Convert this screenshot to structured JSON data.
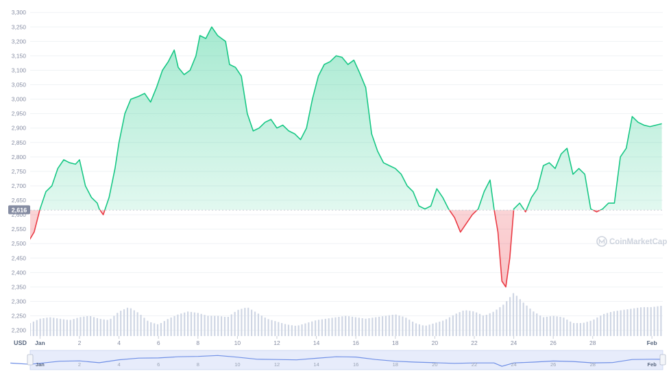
{
  "chart_data": {
    "type": "line",
    "currency_label": "USD",
    "watermark": "CoinMarketCap",
    "reference_value": 2616,
    "reference_label": "2,616",
    "ylim": [
      2180,
      3310
    ],
    "y_ticks": [
      {
        "value": 2200,
        "label": "2,200"
      },
      {
        "value": 2250,
        "label": "2,250"
      },
      {
        "value": 2300,
        "label": "2,300"
      },
      {
        "value": 2350,
        "label": "2,350"
      },
      {
        "value": 2400,
        "label": "2,400"
      },
      {
        "value": 2450,
        "label": "2,450"
      },
      {
        "value": 2500,
        "label": "2,500"
      },
      {
        "value": 2550,
        "label": "2,550"
      },
      {
        "value": 2600,
        "label": "2,600"
      },
      {
        "value": 2650,
        "label": "2,650"
      },
      {
        "value": 2700,
        "label": "2,700"
      },
      {
        "value": 2750,
        "label": "2,750"
      },
      {
        "value": 2800,
        "label": "2,800"
      },
      {
        "value": 2850,
        "label": "2,850"
      },
      {
        "value": 2900,
        "label": "2,900"
      },
      {
        "value": 2950,
        "label": "2,950"
      },
      {
        "value": 3000,
        "label": "3,000"
      },
      {
        "value": 3050,
        "label": "3,050"
      },
      {
        "value": 3100,
        "label": "3,100"
      },
      {
        "value": 3150,
        "label": "3,150"
      },
      {
        "value": 3200,
        "label": "3,200"
      },
      {
        "value": 3250,
        "label": "3,250"
      },
      {
        "value": 3300,
        "label": "3,300"
      }
    ],
    "xlim": [
      -0.5,
      31.55
    ],
    "x_ticks": [
      {
        "value": 0,
        "label": "Jan",
        "bold": true
      },
      {
        "value": 2,
        "label": "2"
      },
      {
        "value": 4,
        "label": "4"
      },
      {
        "value": 6,
        "label": "6"
      },
      {
        "value": 8,
        "label": "8"
      },
      {
        "value": 10,
        "label": "10"
      },
      {
        "value": 12,
        "label": "12"
      },
      {
        "value": 14,
        "label": "14"
      },
      {
        "value": 16,
        "label": "16"
      },
      {
        "value": 18,
        "label": "18"
      },
      {
        "value": 20,
        "label": "20"
      },
      {
        "value": 22,
        "label": "22"
      },
      {
        "value": 24,
        "label": "24"
      },
      {
        "value": 26,
        "label": "26"
      },
      {
        "value": 28,
        "label": "28"
      },
      {
        "value": 31,
        "label": "Feb",
        "bold": true
      }
    ],
    "price_series": {
      "x": [
        -1.5,
        -1.2,
        -0.9,
        -0.6,
        -0.3,
        0,
        0.3,
        0.6,
        0.9,
        1.2,
        1.5,
        1.8,
        2.0,
        2.3,
        2.6,
        2.9,
        3.0,
        3.2,
        3.5,
        3.8,
        4.0,
        4.3,
        4.6,
        5.0,
        5.3,
        5.6,
        5.9,
        6.2,
        6.5,
        6.8,
        7.0,
        7.3,
        7.6,
        7.9,
        8.1,
        8.4,
        8.7,
        9.0,
        9.2,
        9.4,
        9.6,
        9.9,
        10.2,
        10.5,
        10.8,
        11.1,
        11.4,
        11.7,
        12.0,
        12.3,
        12.6,
        12.9,
        13.2,
        13.5,
        13.8,
        14.1,
        14.4,
        14.7,
        15.0,
        15.3,
        15.6,
        15.9,
        16.2,
        16.5,
        16.8,
        17.1,
        17.4,
        17.7,
        18.0,
        18.3,
        18.6,
        18.9,
        19.2,
        19.5,
        19.8,
        20.1,
        20.4,
        20.7,
        21.0,
        21.3,
        21.6,
        21.9,
        22.2,
        22.5,
        22.8,
        23.0,
        23.2,
        23.4,
        23.6,
        23.8,
        24.0,
        24.3,
        24.6,
        24.9,
        25.2,
        25.5,
        25.8,
        26.1,
        26.4,
        26.7,
        27.0,
        27.3,
        27.6,
        27.9,
        28.2,
        28.5,
        28.8,
        29.1,
        29.4,
        29.7,
        30.0,
        30.3,
        30.6,
        30.9,
        31.2,
        31.5
      ],
      "y": [
        2610,
        2590,
        2560,
        2505,
        2540,
        2620,
        2680,
        2700,
        2760,
        2790,
        2780,
        2775,
        2790,
        2700,
        2660,
        2640,
        2620,
        2600,
        2660,
        2760,
        2850,
        2950,
        3000,
        3010,
        3020,
        2990,
        3040,
        3100,
        3130,
        3170,
        3110,
        3085,
        3100,
        3150,
        3220,
        3210,
        3250,
        3220,
        3210,
        3200,
        3120,
        3110,
        3080,
        2950,
        2890,
        2900,
        2920,
        2930,
        2900,
        2910,
        2890,
        2880,
        2860,
        2900,
        3000,
        3080,
        3120,
        3130,
        3150,
        3145,
        3120,
        3135,
        3090,
        3040,
        2880,
        2820,
        2780,
        2770,
        2760,
        2740,
        2700,
        2680,
        2630,
        2620,
        2630,
        2690,
        2660,
        2620,
        2590,
        2540,
        2570,
        2600,
        2620,
        2680,
        2720,
        2620,
        2540,
        2370,
        2350,
        2450,
        2620,
        2640,
        2610,
        2660,
        2690,
        2770,
        2780,
        2760,
        2810,
        2830,
        2740,
        2760,
        2740,
        2620,
        2610,
        2620,
        2640,
        2640,
        2800,
        2830,
        2940,
        2920,
        2910,
        2905,
        2910,
        2915
      ]
    },
    "volume_series": {
      "x": [
        -1.5,
        -1.0,
        -0.5,
        0.0,
        0.5,
        1.0,
        1.5,
        2.0,
        2.5,
        3.0,
        3.5,
        4.0,
        4.5,
        5.0,
        5.5,
        6.0,
        6.5,
        7.0,
        7.5,
        8.0,
        8.5,
        9.0,
        9.5,
        10.0,
        10.5,
        11.0,
        11.5,
        12.0,
        12.5,
        13.0,
        13.5,
        14.0,
        14.5,
        15.0,
        15.5,
        16.0,
        16.5,
        17.0,
        17.5,
        18.0,
        18.5,
        19.0,
        19.5,
        20.0,
        20.5,
        21.0,
        21.5,
        22.0,
        22.5,
        23.0,
        23.5,
        24.0,
        24.5,
        25.0,
        25.5,
        26.0,
        26.5,
        27.0,
        27.5,
        28.0,
        28.5,
        29.0,
        29.5,
        30.0,
        30.5,
        31.0,
        31.5
      ],
      "y": [
        2225,
        2220,
        2225,
        2240,
        2245,
        2240,
        2235,
        2245,
        2250,
        2240,
        2235,
        2265,
        2280,
        2260,
        2230,
        2220,
        2240,
        2255,
        2265,
        2260,
        2250,
        2250,
        2245,
        2270,
        2280,
        2260,
        2240,
        2230,
        2220,
        2215,
        2225,
        2235,
        2240,
        2245,
        2250,
        2245,
        2240,
        2245,
        2250,
        2255,
        2245,
        2225,
        2215,
        2225,
        2235,
        2255,
        2270,
        2265,
        2250,
        2265,
        2290,
        2330,
        2295,
        2265,
        2245,
        2250,
        2245,
        2225,
        2225,
        2235,
        2255,
        2265,
        2270,
        2275,
        2280,
        2280,
        2285
      ]
    },
    "navigator_series": {
      "x": [
        -1.5,
        -0.5,
        1.0,
        2.0,
        3.0,
        4.0,
        5.0,
        6.0,
        7.0,
        8.0,
        9.0,
        10.0,
        11.0,
        12.0,
        13.0,
        14.0,
        15.0,
        16.0,
        17.0,
        18.0,
        19.0,
        20.0,
        21.0,
        22.0,
        23.0,
        23.4,
        24.0,
        25.0,
        26.0,
        27.0,
        28.0,
        29.0,
        30.0,
        31.0,
        31.5
      ],
      "y": [
        2610,
        2510,
        2760,
        2790,
        2640,
        2880,
        3010,
        3030,
        3120,
        3150,
        3230,
        3090,
        2920,
        2900,
        2870,
        3000,
        3120,
        3100,
        2900,
        2760,
        2690,
        2640,
        2590,
        2620,
        2620,
        2350,
        2620,
        2690,
        2780,
        2740,
        2630,
        2650,
        2900,
        2920,
        2915
      ]
    },
    "colors": {
      "up": "#16c784",
      "down": "#ea3943",
      "volume": "#cfd6e4",
      "navigator_line": "#6f8fe6",
      "navigator_fill": "#e7ecfb",
      "axis_text": "#858ca2",
      "grid": "#eff2f5"
    }
  }
}
